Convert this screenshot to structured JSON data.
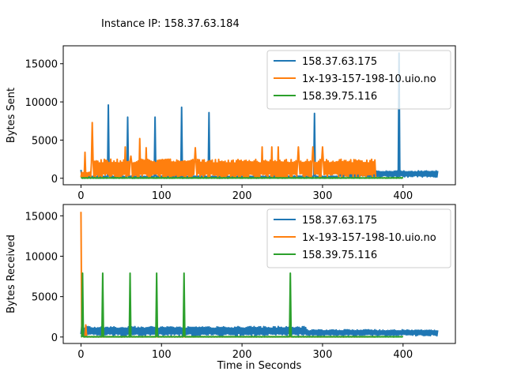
{
  "figure": {
    "suptitle": "Instance IP: 158.37.63.184"
  },
  "chart_data": [
    {
      "type": "line",
      "xlabel": "",
      "ylabel": "Bytes Sent",
      "xlim": [
        -22,
        465
      ],
      "ylim": [
        -850,
        17350
      ],
      "xticks": [
        0,
        100,
        200,
        300,
        400
      ],
      "yticks": [
        0,
        5000,
        10000,
        15000
      ],
      "legend_position": "top-right",
      "series": [
        {
          "name": "158.37.63.175",
          "color": "#1f77b4",
          "base": {
            "x_start": 0,
            "x_end": 443,
            "step": 1,
            "low": 0,
            "high": 300,
            "late_from": 320,
            "late_low": 150,
            "late_high": 1000
          },
          "spikes": [
            [
              0,
              1100
            ],
            [
              34,
              9600
            ],
            [
              58,
              8000
            ],
            [
              92,
              8000
            ],
            [
              125,
              9300
            ],
            [
              159,
              8600
            ],
            [
              290,
              8500
            ],
            [
              395,
              16400
            ]
          ]
        },
        {
          "name": "1x-193-157-198-10.uio.no",
          "color": "#ff7f0e",
          "base": {
            "x_start": 0,
            "x_end": 366,
            "step": 1,
            "low": 0,
            "high": 2500,
            "early_until": 13,
            "early_high": 800
          },
          "spikes": [
            [
              5,
              3400
            ],
            [
              10,
              400
            ],
            [
              14,
              7300
            ],
            [
              55,
              4100
            ],
            [
              62,
              2900
            ],
            [
              73,
              5200
            ],
            [
              81,
              4000
            ],
            [
              142,
              4000
            ],
            [
              225,
              4100
            ],
            [
              237,
              4100
            ],
            [
              245,
              4100
            ],
            [
              270,
              4100
            ],
            [
              288,
              4100
            ],
            [
              300,
              4100
            ]
          ]
        },
        {
          "name": "158.39.75.116",
          "color": "#2ca02c",
          "base": {
            "x_start": 0,
            "x_end": 400,
            "step": 1,
            "low": 0,
            "high": 80
          },
          "spikes": []
        }
      ]
    },
    {
      "type": "line",
      "xlabel": "Time in Seconds",
      "ylabel": "Bytes Received",
      "xlim": [
        -22,
        465
      ],
      "ylim": [
        -800,
        16400
      ],
      "xticks": [
        0,
        100,
        200,
        300,
        400
      ],
      "yticks": [
        0,
        5000,
        10000,
        15000
      ],
      "legend_position": "top-right",
      "series": [
        {
          "name": "158.37.63.175",
          "color": "#1f77b4",
          "base": {
            "x_start": 0,
            "x_end": 443,
            "step": 1,
            "low": 150,
            "high": 1300,
            "late_from": 280,
            "late_low": 150,
            "late_high": 900
          },
          "spikes": []
        },
        {
          "name": "1x-193-157-198-10.uio.no",
          "color": "#ff7f0e",
          "base": {
            "x_start": 0,
            "x_end": 366,
            "step": 1,
            "low": 0,
            "high": 60
          },
          "spikes": [
            [
              0,
              15500
            ],
            [
              2,
              3500
            ],
            [
              6,
              1500
            ]
          ]
        },
        {
          "name": "158.39.75.116",
          "color": "#2ca02c",
          "base": {
            "x_start": 0,
            "x_end": 400,
            "step": 1,
            "low": 0,
            "high": 60
          },
          "spikes": [
            [
              2,
              7900
            ],
            [
              27,
              7900
            ],
            [
              61,
              7900
            ],
            [
              94,
              7900
            ],
            [
              128,
              7900
            ],
            [
              260,
              7900
            ]
          ]
        }
      ]
    }
  ]
}
